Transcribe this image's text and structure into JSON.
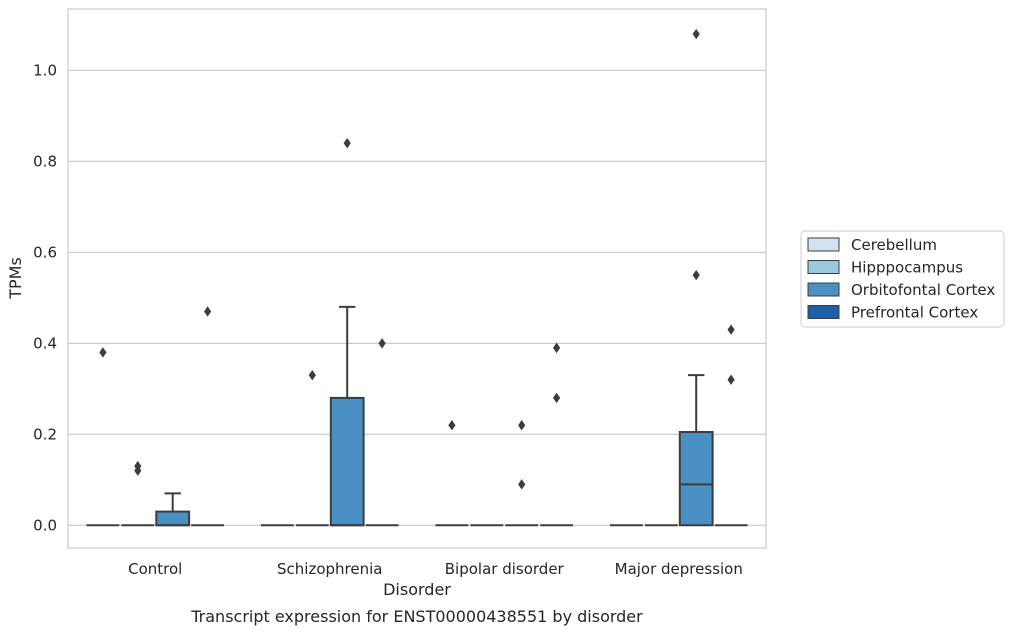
{
  "chart_data": {
    "type": "box",
    "caption": "Transcript expression for ENST00000438551 by disorder",
    "xlabel": "Disorder",
    "ylabel": "TPMs",
    "ylim": [
      -0.05,
      1.135
    ],
    "yticks": [
      0.0,
      0.2,
      0.4,
      0.6,
      0.8,
      1.0
    ],
    "ytick_labels": [
      "0.0",
      "0.2",
      "0.4",
      "0.6",
      "0.8",
      "1.0"
    ],
    "grid": "horizontal",
    "legend_position": "right",
    "categories": [
      "Control",
      "Schizophrenia",
      "Bipolar disorder",
      "Major depression"
    ],
    "series": [
      {
        "name": "Cerebellum",
        "color": "#d0e1f2",
        "boxes": [
          {
            "category": "Control",
            "q1": 0,
            "median": 0,
            "q3": 0,
            "whisker_low": 0,
            "whisker_high": 0,
            "outliers": [
              0.38
            ]
          },
          {
            "category": "Schizophrenia",
            "q1": 0,
            "median": 0,
            "q3": 0,
            "whisker_low": 0,
            "whisker_high": 0,
            "outliers": []
          },
          {
            "category": "Bipolar disorder",
            "q1": 0,
            "median": 0,
            "q3": 0,
            "whisker_low": 0,
            "whisker_high": 0,
            "outliers": [
              0.22
            ]
          },
          {
            "category": "Major depression",
            "q1": 0,
            "median": 0,
            "q3": 0,
            "whisker_low": 0,
            "whisker_high": 0,
            "outliers": []
          }
        ]
      },
      {
        "name": "Hipppocampus",
        "color": "#9ac8e0",
        "boxes": [
          {
            "category": "Control",
            "q1": 0,
            "median": 0,
            "q3": 0,
            "whisker_low": 0,
            "whisker_high": 0,
            "outliers": [
              0.13,
              0.12
            ]
          },
          {
            "category": "Schizophrenia",
            "q1": 0,
            "median": 0,
            "q3": 0,
            "whisker_low": 0,
            "whisker_high": 0,
            "outliers": [
              0.33
            ]
          },
          {
            "category": "Bipolar disorder",
            "q1": 0,
            "median": 0,
            "q3": 0,
            "whisker_low": 0,
            "whisker_high": 0,
            "outliers": []
          },
          {
            "category": "Major depression",
            "q1": 0,
            "median": 0,
            "q3": 0,
            "whisker_low": 0,
            "whisker_high": 0,
            "outliers": []
          }
        ]
      },
      {
        "name": "Orbitofontal Cortex",
        "color": "#4a90c2",
        "boxes": [
          {
            "category": "Control",
            "q1": 0,
            "median": 0,
            "q3": 0.03,
            "whisker_low": 0,
            "whisker_high": 0.07,
            "outliers": []
          },
          {
            "category": "Schizophrenia",
            "q1": 0,
            "median": 0,
            "q3": 0.28,
            "whisker_low": 0,
            "whisker_high": 0.48,
            "outliers": [
              0.84
            ]
          },
          {
            "category": "Bipolar disorder",
            "q1": 0,
            "median": 0,
            "q3": 0,
            "whisker_low": 0,
            "whisker_high": 0,
            "outliers": [
              0.22,
              0.09
            ]
          },
          {
            "category": "Major depression",
            "q1": 0,
            "median": 0.09,
            "q3": 0.205,
            "whisker_low": 0,
            "whisker_high": 0.33,
            "outliers": [
              1.08,
              0.55
            ]
          }
        ]
      },
      {
        "name": "Prefrontal Cortex",
        "color": "#1f5ea8",
        "boxes": [
          {
            "category": "Control",
            "q1": 0,
            "median": 0,
            "q3": 0,
            "whisker_low": 0,
            "whisker_high": 0,
            "outliers": [
              0.47
            ]
          },
          {
            "category": "Schizophrenia",
            "q1": 0,
            "median": 0,
            "q3": 0,
            "whisker_low": 0,
            "whisker_high": 0,
            "outliers": [
              0.4
            ]
          },
          {
            "category": "Bipolar disorder",
            "q1": 0,
            "median": 0,
            "q3": 0,
            "whisker_low": 0,
            "whisker_high": 0,
            "outliers": [
              0.39,
              0.28
            ]
          },
          {
            "category": "Major depression",
            "q1": 0,
            "median": 0,
            "q3": 0,
            "whisker_low": 0,
            "whisker_high": 0,
            "outliers": [
              0.43,
              0.32
            ]
          }
        ]
      }
    ]
  }
}
